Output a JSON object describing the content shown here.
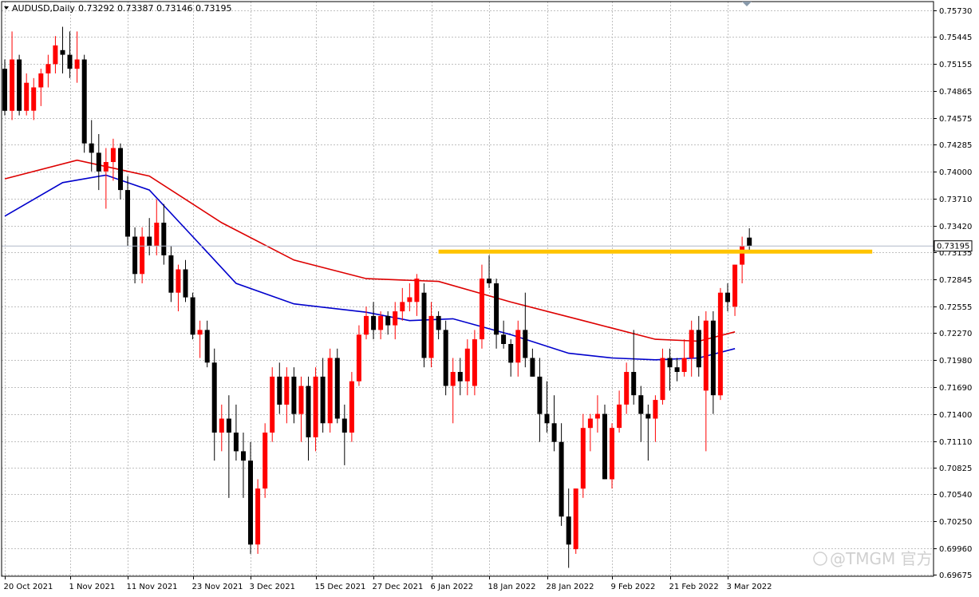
{
  "header": {
    "symbol_label": "AUDUSD,Daily",
    "ohlc_values": "0.73292 0.73387 0.73146 0.73195"
  },
  "current_price_label": "0.73195",
  "watermark": "@TMGM 官方",
  "colors": {
    "bull": "#ff0000",
    "bear": "#000000",
    "ma_fast": "#0000cc",
    "ma_slow": "#dd0000",
    "resistance": "#ffc400",
    "grid": "#c0c0c0"
  },
  "chart_data": {
    "type": "candlestick",
    "symbol": "AUDUSD",
    "timeframe": "Daily",
    "ylim": [
      0.6966,
      0.7582
    ],
    "grid": true,
    "y_ticks": [
      "0.75730",
      "0.75445",
      "0.75155",
      "0.74865",
      "0.74575",
      "0.74285",
      "0.74000",
      "0.73710",
      "0.73420",
      "0.73135",
      "0.72845",
      "0.72555",
      "0.72270",
      "0.71980",
      "0.71690",
      "0.71400",
      "0.71110",
      "0.70825",
      "0.70540",
      "0.70250",
      "0.69960",
      "0.69675"
    ],
    "x_ticks": [
      {
        "label": "20 Oct 2021",
        "index": 0
      },
      {
        "label": "1 Nov 2021",
        "index": 9
      },
      {
        "label": "11 Nov 2021",
        "index": 17
      },
      {
        "label": "23 Nov 2021",
        "index": 26
      },
      {
        "label": "3 Dec 2021",
        "index": 34
      },
      {
        "label": "15 Dec 2021",
        "index": 43
      },
      {
        "label": "27 Dec 2021",
        "index": 51
      },
      {
        "label": "6 Jan 2022",
        "index": 59
      },
      {
        "label": "18 Jan 2022",
        "index": 67
      },
      {
        "label": "28 Jan 2022",
        "index": 75
      },
      {
        "label": "9 Feb 2022",
        "index": 84
      },
      {
        "label": "21 Feb 2022",
        "index": 92
      },
      {
        "label": "3 Mar 2022",
        "index": 100
      }
    ],
    "candles": [
      [
        0.751,
        0.752,
        0.746,
        0.7465
      ],
      [
        0.7465,
        0.755,
        0.7455,
        0.752
      ],
      [
        0.752,
        0.7525,
        0.746,
        0.7465
      ],
      [
        0.7465,
        0.7505,
        0.746,
        0.7495
      ],
      [
        0.7465,
        0.75,
        0.7455,
        0.749
      ],
      [
        0.749,
        0.751,
        0.747,
        0.7505
      ],
      [
        0.7505,
        0.7525,
        0.749,
        0.7515
      ],
      [
        0.7515,
        0.7545,
        0.7505,
        0.7535
      ],
      [
        0.753,
        0.7555,
        0.7505,
        0.7525
      ],
      [
        0.7525,
        0.755,
        0.75,
        0.751
      ],
      [
        0.751,
        0.755,
        0.7495,
        0.752
      ],
      [
        0.752,
        0.7525,
        0.742,
        0.743
      ],
      [
        0.743,
        0.7455,
        0.74,
        0.742
      ],
      [
        0.742,
        0.744,
        0.738,
        0.74
      ],
      [
        0.74,
        0.7425,
        0.736,
        0.741
      ],
      [
        0.741,
        0.7435,
        0.739,
        0.7425
      ],
      [
        0.7425,
        0.743,
        0.737,
        0.738
      ],
      [
        0.738,
        0.7395,
        0.732,
        0.733
      ],
      [
        0.733,
        0.734,
        0.728,
        0.729
      ],
      [
        0.729,
        0.734,
        0.728,
        0.733
      ],
      [
        0.733,
        0.735,
        0.731,
        0.732
      ],
      [
        0.732,
        0.737,
        0.731,
        0.7345
      ],
      [
        0.7345,
        0.7365,
        0.73,
        0.731
      ],
      [
        0.731,
        0.732,
        0.726,
        0.727
      ],
      [
        0.727,
        0.73,
        0.725,
        0.7295
      ],
      [
        0.7295,
        0.7305,
        0.726,
        0.7265
      ],
      [
        0.7265,
        0.727,
        0.722,
        0.7225
      ],
      [
        0.7225,
        0.724,
        0.72,
        0.723
      ],
      [
        0.723,
        0.724,
        0.719,
        0.7195
      ],
      [
        0.7195,
        0.721,
        0.709,
        0.712
      ],
      [
        0.712,
        0.715,
        0.71,
        0.7135
      ],
      [
        0.7135,
        0.716,
        0.705,
        0.712
      ],
      [
        0.712,
        0.715,
        0.709,
        0.71
      ],
      [
        0.71,
        0.712,
        0.705,
        0.709
      ],
      [
        0.709,
        0.711,
        0.699,
        0.7
      ],
      [
        0.7,
        0.707,
        0.699,
        0.706
      ],
      [
        0.706,
        0.713,
        0.705,
        0.712
      ],
      [
        0.712,
        0.719,
        0.711,
        0.718
      ],
      [
        0.718,
        0.7195,
        0.714,
        0.715
      ],
      [
        0.715,
        0.719,
        0.713,
        0.718
      ],
      [
        0.718,
        0.719,
        0.713,
        0.714
      ],
      [
        0.714,
        0.718,
        0.711,
        0.717
      ],
      [
        0.717,
        0.718,
        0.709,
        0.7115
      ],
      [
        0.7115,
        0.719,
        0.71,
        0.718
      ],
      [
        0.718,
        0.72,
        0.712,
        0.713
      ],
      [
        0.713,
        0.721,
        0.712,
        0.72
      ],
      [
        0.72,
        0.721,
        0.713,
        0.7135
      ],
      [
        0.7135,
        0.715,
        0.7085,
        0.712
      ],
      [
        0.712,
        0.7185,
        0.711,
        0.7175
      ],
      [
        0.7175,
        0.7235,
        0.717,
        0.7225
      ],
      [
        0.7225,
        0.7255,
        0.722,
        0.7245
      ],
      [
        0.7245,
        0.726,
        0.722,
        0.723
      ],
      [
        0.723,
        0.725,
        0.722,
        0.7245
      ],
      [
        0.7245,
        0.725,
        0.7225,
        0.7235
      ],
      [
        0.7235,
        0.726,
        0.722,
        0.725
      ],
      [
        0.725,
        0.7275,
        0.724,
        0.726
      ],
      [
        0.726,
        0.728,
        0.725,
        0.7265
      ],
      [
        0.726,
        0.729,
        0.7245,
        0.7285
      ],
      [
        0.727,
        0.728,
        0.719,
        0.72
      ],
      [
        0.72,
        0.726,
        0.719,
        0.7245
      ],
      [
        0.7245,
        0.725,
        0.722,
        0.723
      ],
      [
        0.723,
        0.724,
        0.716,
        0.717
      ],
      [
        0.717,
        0.72,
        0.713,
        0.7185
      ],
      [
        0.7185,
        0.72,
        0.716,
        0.7175
      ],
      [
        0.7175,
        0.722,
        0.716,
        0.721
      ],
      [
        0.717,
        0.723,
        0.716,
        0.722
      ],
      [
        0.722,
        0.73,
        0.721,
        0.7285
      ],
      [
        0.7285,
        0.731,
        0.7275,
        0.728
      ],
      [
        0.728,
        0.7285,
        0.721,
        0.7225
      ],
      [
        0.7225,
        0.724,
        0.721,
        0.7215
      ],
      [
        0.7215,
        0.722,
        0.718,
        0.7195
      ],
      [
        0.7195,
        0.724,
        0.718,
        0.723
      ],
      [
        0.723,
        0.727,
        0.719,
        0.72
      ],
      [
        0.72,
        0.721,
        0.718,
        0.718
      ],
      [
        0.718,
        0.72,
        0.711,
        0.714
      ],
      [
        0.714,
        0.7175,
        0.712,
        0.713
      ],
      [
        0.713,
        0.716,
        0.71,
        0.711
      ],
      [
        0.711,
        0.713,
        0.702,
        0.703
      ],
      [
        0.703,
        0.706,
        0.6975,
        0.7
      ],
      [
        0.6995,
        0.706,
        0.699,
        0.706
      ],
      [
        0.706,
        0.714,
        0.705,
        0.7125
      ],
      [
        0.7125,
        0.714,
        0.71,
        0.7135
      ],
      [
        0.7135,
        0.716,
        0.712,
        0.714
      ],
      [
        0.714,
        0.715,
        0.707,
        0.707
      ],
      [
        0.707,
        0.713,
        0.706,
        0.7125
      ],
      [
        0.7125,
        0.7165,
        0.712,
        0.715
      ],
      [
        0.715,
        0.7195,
        0.714,
        0.7185
      ],
      [
        0.7185,
        0.723,
        0.715,
        0.716
      ],
      [
        0.716,
        0.717,
        0.711,
        0.714
      ],
      [
        0.714,
        0.715,
        0.709,
        0.7135
      ],
      [
        0.7135,
        0.716,
        0.711,
        0.7155
      ],
      [
        0.7155,
        0.721,
        0.715,
        0.72
      ],
      [
        0.72,
        0.721,
        0.7165,
        0.719
      ],
      [
        0.719,
        0.72,
        0.7175,
        0.7185
      ],
      [
        0.7185,
        0.722,
        0.718,
        0.72
      ],
      [
        0.72,
        0.724,
        0.718,
        0.723
      ],
      [
        0.723,
        0.7245,
        0.718,
        0.719
      ],
      [
        0.7165,
        0.725,
        0.71,
        0.724
      ],
      [
        0.724,
        0.725,
        0.714,
        0.716
      ],
      [
        0.716,
        0.7275,
        0.7155,
        0.727
      ],
      [
        0.727,
        0.728,
        0.725,
        0.726
      ],
      [
        0.7255,
        0.73,
        0.7245,
        0.73
      ],
      [
        0.73,
        0.733,
        0.728,
        0.732
      ],
      [
        0.7329,
        0.7339,
        0.7315,
        0.732
      ]
    ],
    "series": [
      {
        "type": "ma",
        "color": "#dd0000",
        "points": [
          [
            0,
            0.7392
          ],
          [
            10,
            0.7412
          ],
          [
            20,
            0.7395
          ],
          [
            30,
            0.7345
          ],
          [
            40,
            0.7305
          ],
          [
            50,
            0.7285
          ],
          [
            60,
            0.7282
          ],
          [
            70,
            0.726
          ],
          [
            80,
            0.724
          ],
          [
            90,
            0.722
          ],
          [
            96,
            0.7218
          ],
          [
            101,
            0.7228
          ]
        ]
      },
      {
        "type": "ma",
        "color": "#0000cc",
        "points": [
          [
            0,
            0.7352
          ],
          [
            8,
            0.7388
          ],
          [
            14,
            0.7396
          ],
          [
            20,
            0.738
          ],
          [
            26,
            0.733
          ],
          [
            32,
            0.728
          ],
          [
            40,
            0.7258
          ],
          [
            50,
            0.7249
          ],
          [
            56,
            0.724
          ],
          [
            62,
            0.7242
          ],
          [
            70,
            0.7225
          ],
          [
            78,
            0.7205
          ],
          [
            84,
            0.72
          ],
          [
            90,
            0.7198
          ],
          [
            96,
            0.72
          ],
          [
            101,
            0.721
          ]
        ]
      }
    ],
    "resistance": {
      "value": 0.7314,
      "from": 60,
      "to": 120
    }
  }
}
